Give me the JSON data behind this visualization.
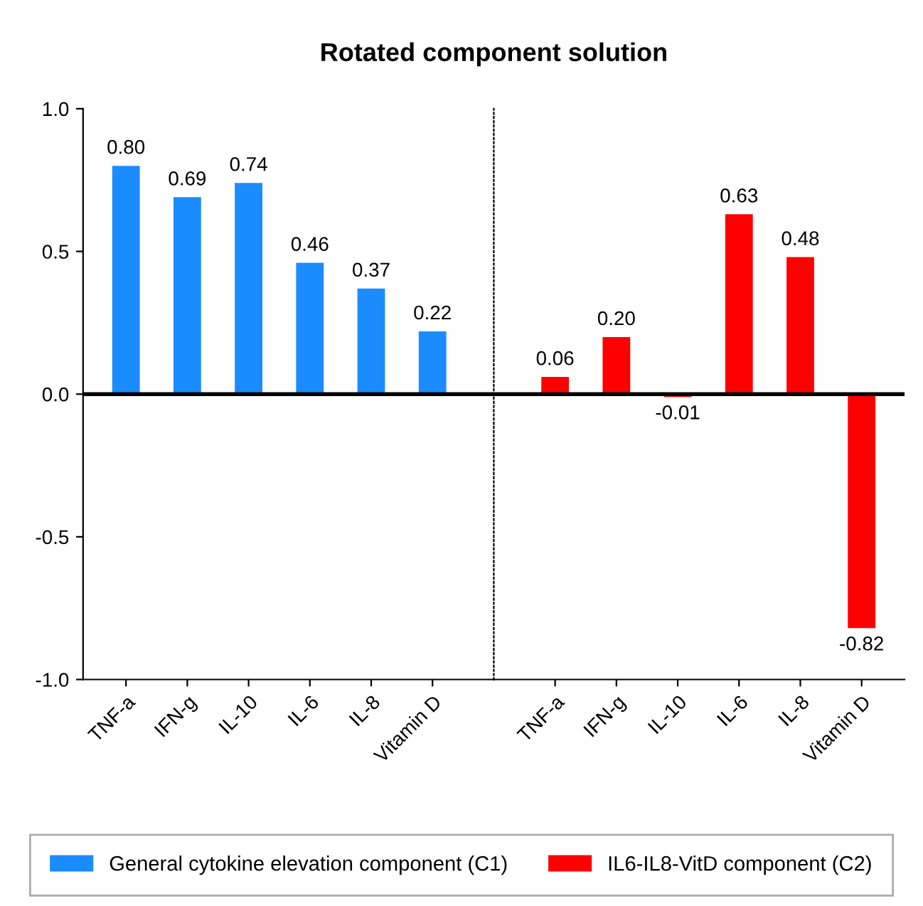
{
  "chart_data": [
    {
      "type": "bar",
      "title": "Rotated component solution",
      "categories": [
        "TNF-a",
        "IFN-g",
        "IL-10",
        "IL-6",
        "IL-8",
        "Vitamin D"
      ],
      "series": [
        {
          "name": "General cytokine elevation component (C1)",
          "color": "#1a8cff",
          "values": [
            0.8,
            0.69,
            0.74,
            0.46,
            0.37,
            0.22
          ],
          "value_labels": [
            "0.80",
            "0.69",
            "0.74",
            "0.46",
            "0.37",
            "0.22"
          ]
        }
      ],
      "ylim": [
        -1,
        1
      ],
      "yticks": [
        {
          "value": -1,
          "label": "-1.0"
        },
        {
          "value": -0.5,
          "label": "-0.5"
        },
        {
          "value": 0,
          "label": "0.0"
        },
        {
          "value": 0.5,
          "label": "0.5"
        },
        {
          "value": 1,
          "label": "1.0"
        }
      ],
      "ref_lines": [
        {
          "axis": "y",
          "value": 0,
          "color": "#000000",
          "line_style": "solid"
        }
      ],
      "legend": "bottom"
    },
    {
      "type": "bar",
      "categories": [
        "TNF-a",
        "IFN-g",
        "IL-10",
        "IL-6",
        "IL-8",
        "Vitamin D"
      ],
      "series": [
        {
          "name": "IL6-IL8-VitD component (C2)",
          "color": "#ff0000",
          "values": [
            0.06,
            0.2,
            -0.01,
            0.63,
            0.48,
            -0.82
          ],
          "value_labels": [
            "0.06",
            "0.20",
            "-0.01",
            "0.63",
            "0.48",
            "-0.82"
          ]
        }
      ],
      "ylim": [
        -1,
        1
      ],
      "ref_lines": [
        {
          "axis": "y",
          "value": 0,
          "color": "#000000",
          "line_style": "solid"
        }
      ],
      "tick_labels": "x",
      "legend": "bottom"
    }
  ]
}
